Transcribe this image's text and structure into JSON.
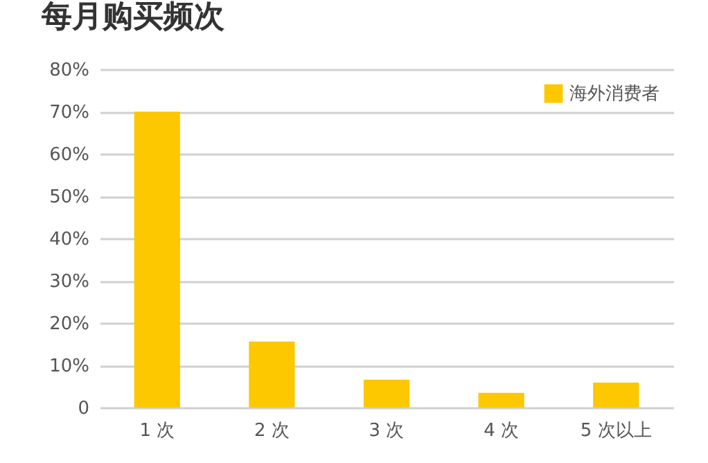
{
  "chart_data": {
    "type": "bar",
    "title": "每月购买频次",
    "categories": [
      "1 次",
      "2 次",
      "3 次",
      "4 次",
      "5 次以上"
    ],
    "series": [
      {
        "name": "海外消费者",
        "color": "#fdc800",
        "values": [
          70,
          15.6,
          6.6,
          3.5,
          5.9
        ]
      }
    ],
    "ylim": [
      0,
      80
    ],
    "yticks": [
      0,
      {
        "value": 10,
        "label": "10%"
      },
      {
        "value": 20,
        "label": "20%"
      },
      {
        "value": 30,
        "label": "30%"
      },
      {
        "value": 40,
        "label": "40%"
      },
      {
        "value": 50,
        "label": "50%"
      },
      {
        "value": 60,
        "label": "60%"
      },
      {
        "value": 70,
        "label": "70%"
      },
      {
        "value": 80,
        "label": "80%"
      }
    ],
    "grid": "y",
    "legend": "top right"
  }
}
